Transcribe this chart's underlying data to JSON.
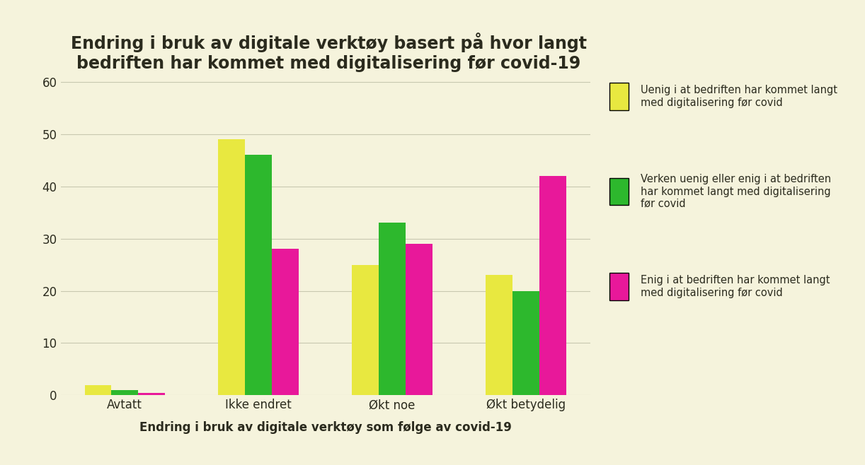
{
  "title": "Endring i bruk av digitale verktøy basert på hvor langt\nbedriften har kommet med digitalisering før covid-19",
  "xlabel": "Endring i bruk av digitale verktøy som følge av covid-19",
  "categories": [
    "Avtatt",
    "Ikke endret",
    "Økt noe",
    "Økt betydelig"
  ],
  "series": [
    {
      "label": "Uenig i at bedriften har kommet langt\nmed digitalisering før covid",
      "color": "#e8e840",
      "values": [
        2,
        49,
        25,
        23
      ]
    },
    {
      "label": "Verken uenig eller enig i at bedriften\nhar kommet langt med digitalisering\nfør covid",
      "color": "#2db82d",
      "values": [
        1,
        46,
        33,
        20
      ]
    },
    {
      "label": "Enig i at bedriften har kommet langt\nmed digitalisering før covid",
      "color": "#e8189a",
      "values": [
        0.5,
        28,
        29,
        42
      ]
    }
  ],
  "ylim": [
    0,
    65
  ],
  "yticks": [
    0,
    10,
    20,
    30,
    40,
    50,
    60
  ],
  "background_color": "#f5f3dc",
  "title_fontsize": 17,
  "xlabel_fontsize": 12,
  "bar_width": 0.2,
  "title_color": "#2b2b1e",
  "xlabel_color": "#2b2b1e",
  "tick_color": "#2b2b1e",
  "grid_color": "#c8c8b0",
  "legend_fontsize": 10.5
}
